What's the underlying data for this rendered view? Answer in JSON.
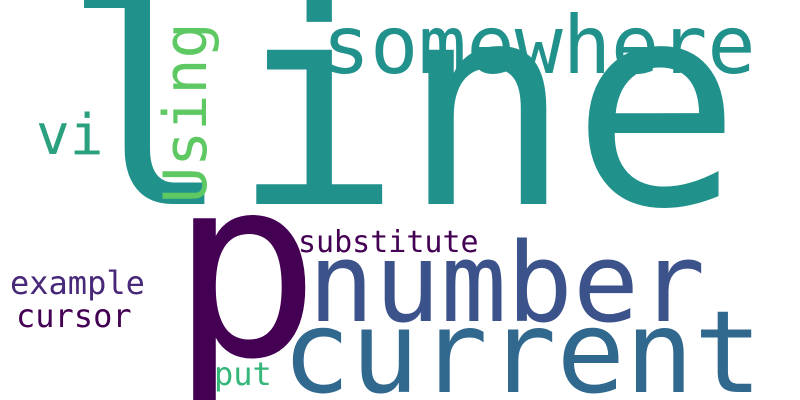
{
  "words": {
    "line": {
      "text": "line",
      "color": "#21918c"
    },
    "somewhere": {
      "text": "somewhere",
      "color": "#21918c"
    },
    "vi": {
      "text": "vi",
      "color": "#2aa07e"
    },
    "using": {
      "text": "Using",
      "color": "#5ec962"
    },
    "p": {
      "text": "p",
      "color": "#440154"
    },
    "number": {
      "text": "number",
      "color": "#3b528b"
    },
    "substitute": {
      "text": "substitute",
      "color": "#440154"
    },
    "current": {
      "text": "current",
      "color": "#31688e"
    },
    "example": {
      "text": "example",
      "color": "#482878"
    },
    "cursor": {
      "text": "cursor",
      "color": "#440154"
    },
    "put": {
      "text": "put",
      "color": "#35b779"
    }
  },
  "background_color": "#ffffff"
}
